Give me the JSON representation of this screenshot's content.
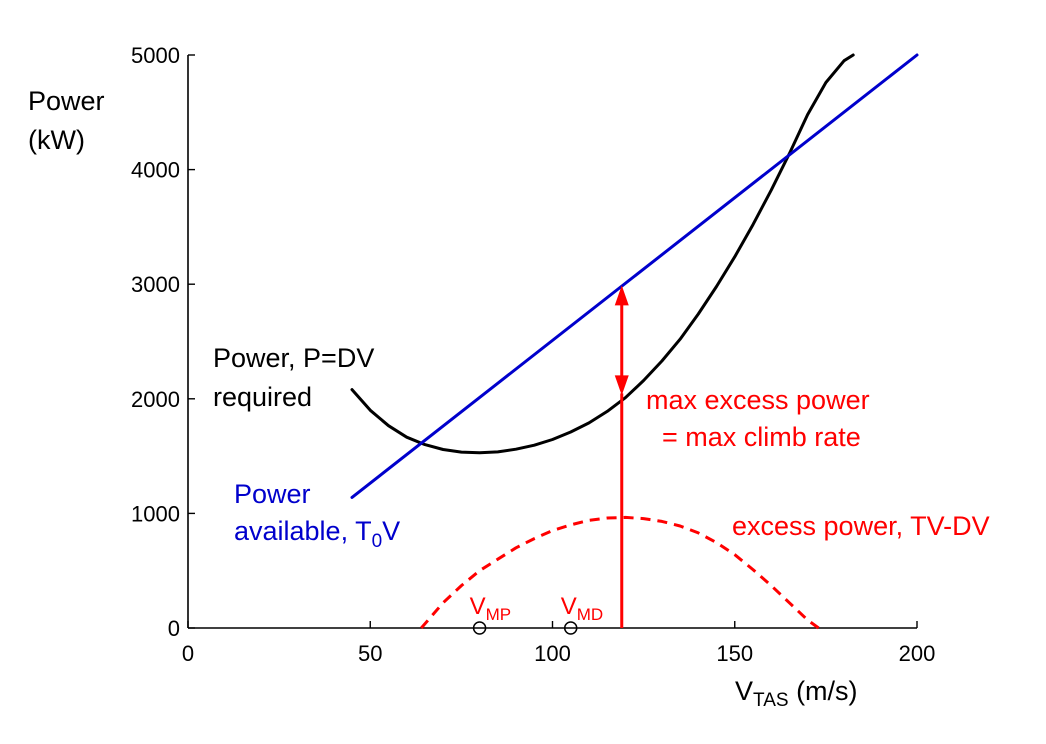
{
  "chart_data": {
    "type": "line",
    "title": "",
    "xlabel_main": "V",
    "xlabel_sub": "TAS",
    "xlabel_unit": " (m/s)",
    "ylabel_line1": "Power",
    "ylabel_line2": "(kW)",
    "xlim": [
      0,
      200
    ],
    "ylim": [
      0,
      5000
    ],
    "xticks": [
      0,
      50,
      100,
      150,
      200
    ],
    "yticks": [
      0,
      1000,
      2000,
      3000,
      4000,
      5000
    ],
    "xtick_labels": [
      "0",
      "50",
      "100",
      "150",
      "200"
    ],
    "ytick_labels": [
      "0",
      "1000",
      "2000",
      "3000",
      "4000",
      "5000"
    ],
    "grid": false,
    "series": [
      {
        "key": "required",
        "color": "#000000",
        "style": "solid",
        "x": [
          45,
          50,
          55,
          60,
          65,
          70,
          75,
          80,
          85,
          90,
          95,
          100,
          105,
          110,
          115,
          120,
          125,
          130,
          135,
          140,
          145,
          150,
          155,
          160,
          165,
          170,
          175,
          180,
          182.5
        ],
        "y": [
          2080,
          1900,
          1765,
          1665,
          1600,
          1558,
          1535,
          1530,
          1537,
          1560,
          1595,
          1645,
          1710,
          1790,
          1890,
          2010,
          2160,
          2330,
          2520,
          2740,
          2980,
          3240,
          3520,
          3820,
          4140,
          4480,
          4760,
          4950,
          5000
        ]
      },
      {
        "key": "available",
        "color": "#0000cc",
        "style": "solid",
        "x": [
          45,
          200
        ],
        "y": [
          1140,
          5000
        ]
      },
      {
        "key": "excess",
        "color": "#ff0000",
        "style": "dashed",
        "x": [
          64,
          70,
          75,
          80,
          85,
          90,
          95,
          100,
          105,
          110,
          115,
          120,
          125,
          130,
          135,
          140,
          145,
          150,
          155,
          160,
          165,
          170,
          173
        ],
        "y": [
          0,
          220,
          370,
          500,
          600,
          700,
          780,
          850,
          900,
          940,
          960,
          965,
          955,
          930,
          890,
          830,
          745,
          640,
          510,
          370,
          220,
          70,
          0
        ]
      }
    ],
    "markers": [
      {
        "x": 80,
        "y": 0,
        "label_main": "V",
        "label_sub": "MP"
      },
      {
        "x": 105,
        "y": 0,
        "label_main": "V",
        "label_sub": "MD"
      }
    ],
    "arrow": {
      "x": 119,
      "y_from": 2030,
      "y_to": 2990,
      "line_from": 0,
      "line_to": 2030
    },
    "annotations": {
      "required_line1": "Power,  P=DV",
      "required_line2": "required",
      "available_line1": "Power",
      "available_line2_a": "available, T",
      "available_line2_sub": "0",
      "available_line2_b": "V",
      "max_line1": "max excess power",
      "max_line2": "= max climb rate",
      "excess_label": "excess power, TV-DV"
    },
    "colors": {
      "required": "#000000",
      "available": "#0000cc",
      "excess": "#ff0000",
      "axes": "#000000"
    }
  }
}
